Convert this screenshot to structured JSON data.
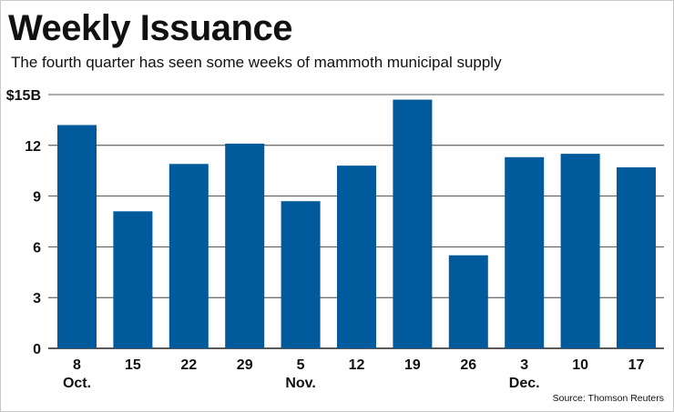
{
  "header": {
    "title": "Weekly Issuance",
    "subtitle": "The fourth quarter has seen some weeks of mammoth municipal supply"
  },
  "footer": {
    "source": "Source: Thomson Reuters"
  },
  "colors": {
    "bar": "#005a9c",
    "grid": "#222222",
    "text": "#111111"
  },
  "chart_data": {
    "type": "bar",
    "title": "Weekly Issuance",
    "subtitle": "The fourth quarter has seen some weeks of mammoth municipal supply",
    "categories": [
      "8",
      "15",
      "22",
      "29",
      "5",
      "12",
      "19",
      "26",
      "3",
      "10",
      "17"
    ],
    "month_labels": [
      {
        "index": 0,
        "label": "Oct."
      },
      {
        "index": 4,
        "label": "Nov."
      },
      {
        "index": 8,
        "label": "Dec."
      }
    ],
    "values": [
      13.2,
      8.1,
      10.9,
      12.1,
      8.7,
      10.8,
      14.7,
      5.5,
      11.3,
      11.5,
      10.7
    ],
    "y_ticks": [
      {
        "value": 0,
        "label": "0"
      },
      {
        "value": 3,
        "label": "3"
      },
      {
        "value": 6,
        "label": "6"
      },
      {
        "value": 9,
        "label": "9"
      },
      {
        "value": 12,
        "label": "12"
      },
      {
        "value": 15,
        "label": "$15B"
      }
    ],
    "ylim": [
      0,
      15
    ],
    "grid": true,
    "legend": "none",
    "source": "Source: Thomson Reuters"
  }
}
